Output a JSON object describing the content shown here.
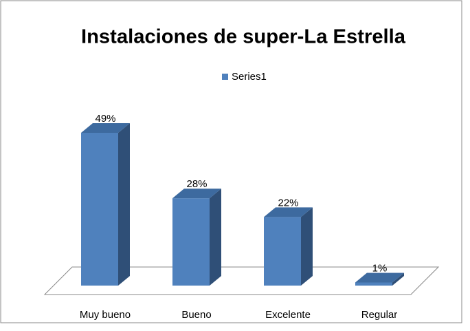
{
  "chart_data": {
    "type": "bar3d",
    "title": "Instalaciones de super-La Estrella",
    "categories": [
      "Muy bueno",
      "Bueno",
      "Excelente",
      "Regular"
    ],
    "series": [
      {
        "name": "Series1",
        "color": "#4f81bd",
        "values": [
          49,
          28,
          22,
          1
        ],
        "value_labels": [
          "49%",
          "28%",
          "22%",
          "1%"
        ]
      }
    ],
    "legend": "top"
  }
}
